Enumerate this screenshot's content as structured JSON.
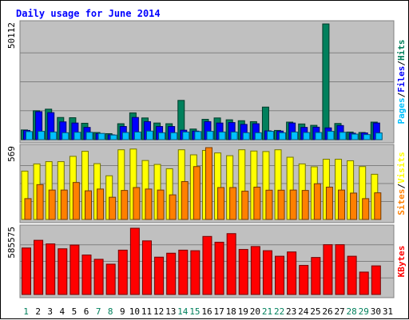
{
  "chart_data": {
    "type": "bar",
    "title": "Daily usage for June 2014",
    "categories": [
      "1",
      "2",
      "3",
      "4",
      "5",
      "6",
      "7",
      "8",
      "9",
      "10",
      "11",
      "12",
      "13",
      "14",
      "15",
      "16",
      "17",
      "18",
      "19",
      "20",
      "21",
      "22",
      "23",
      "24",
      "25",
      "26",
      "27",
      "28",
      "29",
      "30",
      "31"
    ],
    "weekend_days": [
      "1",
      "7",
      "8",
      "14",
      "15",
      "21",
      "22",
      "28",
      "29"
    ],
    "panels": [
      {
        "id": "hits-files-pages",
        "max_label": "50112",
        "ylim": [
          0,
          50112
        ],
        "legend": [
          "Pages",
          "/",
          "Files",
          "/",
          "Hits"
        ],
        "series": [
          {
            "name": "Hits",
            "color": "#00805c",
            "values": [
              4200,
              12500,
              13200,
              9600,
              9500,
              7100,
              3100,
              2600,
              6900,
              11600,
              9400,
              7200,
              6900,
              17000,
              4600,
              8800,
              9400,
              8600,
              8200,
              7800,
              14100,
              4000,
              7600,
              6800,
              6200,
              50112,
              7000,
              3300,
              3100,
              7600,
              0
            ]
          },
          {
            "name": "Files",
            "color": "#0000ff",
            "values": [
              4000,
              12100,
              11700,
              7700,
              7200,
              5300,
              2600,
              2100,
              5700,
              9600,
              7800,
              5700,
              5700,
              4100,
              3700,
              7800,
              7200,
              7400,
              6600,
              6900,
              3800,
              3700,
              7200,
              5300,
              5400,
              5100,
              6100,
              2800,
              2900,
              7200,
              0
            ]
          },
          {
            "name": "Pages",
            "color": "#00c0ff",
            "values": [
              3500,
              3600,
              3300,
              3000,
              3200,
              3200,
              2700,
              2000,
              3100,
              3300,
              3700,
              3000,
              3000,
              3300,
              3500,
              3600,
              3300,
              3300,
              3000,
              3000,
              3600,
              3000,
              3300,
              3100,
              3100,
              3600,
              3200,
              2400,
              2200,
              2900,
              0
            ]
          }
        ]
      },
      {
        "id": "visits-sites",
        "max_label": "569",
        "ylim": [
          0,
          569
        ],
        "legend": [
          "Sites",
          "/",
          "Visits"
        ],
        "series": [
          {
            "name": "Visits",
            "color": "#ffff00",
            "values": [
              383,
              440,
              458,
              458,
              500,
              540,
              442,
              346,
              552,
              558,
              467,
              436,
              402,
              552,
              512,
              547,
              527,
              505,
              552,
              542,
              538,
              552,
              493,
              440,
              417,
              477,
              477,
              465,
              419,
              358,
              0
            ]
          },
          {
            "name": "Sites",
            "color": "#ff8000",
            "values": [
              165,
              276,
              233,
              233,
              293,
              227,
              241,
              176,
              230,
              253,
              241,
              233,
              195,
              300,
              419,
              569,
              253,
              253,
              224,
              256,
              232,
              232,
              233,
              230,
              283,
              256,
              233,
              209,
              165,
              211,
              0
            ]
          }
        ]
      },
      {
        "id": "kbytes",
        "max_label": "585575",
        "ylim": [
          0,
          585575
        ],
        "legend": [
          "KBytes"
        ],
        "series": [
          {
            "name": "KBytes",
            "color": "#ff0000",
            "values": [
              411000,
              479000,
              447000,
              404000,
              437000,
              349000,
              311000,
              268000,
              392000,
              585575,
              474000,
              330000,
              365000,
              392000,
              387000,
              513000,
              462000,
              538000,
              398000,
              424000,
              387000,
              338000,
              376000,
              257000,
              327000,
              440000,
              440000,
              338000,
              198000,
              253000,
              0
            ]
          }
        ]
      }
    ]
  }
}
